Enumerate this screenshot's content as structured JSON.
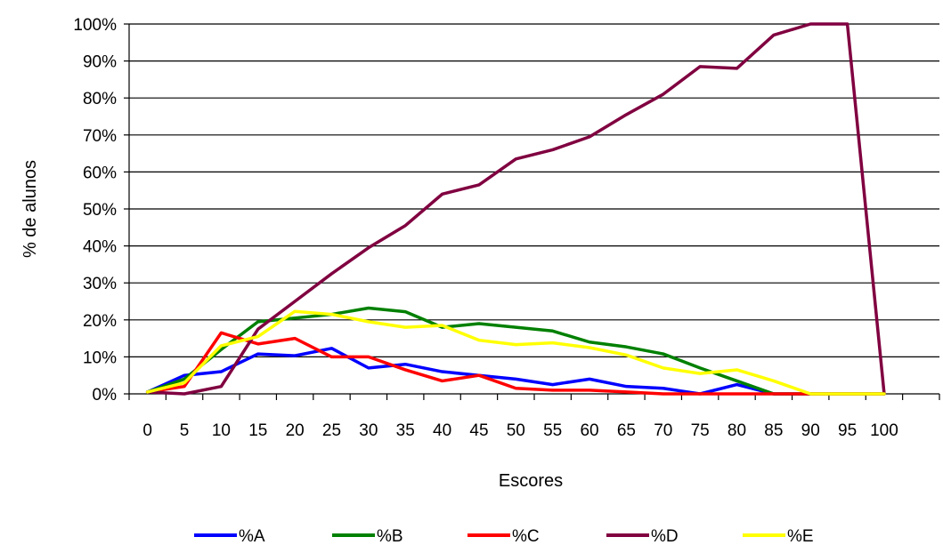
{
  "chart_data": {
    "type": "line",
    "title": "",
    "xlabel": "Escores",
    "ylabel": "% de alunos",
    "categories": [
      "0",
      "5",
      "10",
      "15",
      "20",
      "25",
      "30",
      "35",
      "40",
      "45",
      "50",
      "55",
      "60",
      "65",
      "70",
      "75",
      "80",
      "85",
      "90",
      "95",
      "100"
    ],
    "x": [
      0,
      5,
      10,
      15,
      20,
      25,
      30,
      35,
      40,
      45,
      50,
      55,
      60,
      65,
      70,
      75,
      80,
      85,
      90,
      95,
      100
    ],
    "ylim": [
      0,
      100
    ],
    "yticks": [
      "0%",
      "10%",
      "20%",
      "30%",
      "40%",
      "50%",
      "60%",
      "70%",
      "80%",
      "90%",
      "100%"
    ],
    "grid": true,
    "legend_position": "bottom",
    "series": [
      {
        "name": "%A",
        "color": "#0000ff",
        "values": [
          0.5,
          5,
          6,
          10.8,
          10.3,
          12.3,
          7,
          8,
          6,
          5,
          4,
          2.5,
          4,
          2,
          1.5,
          0,
          2.5,
          0,
          0,
          0,
          0
        ]
      },
      {
        "name": "%B",
        "color": "#008000",
        "values": [
          0.5,
          4,
          12,
          19.5,
          20.5,
          21.5,
          23.2,
          22.2,
          18,
          19,
          18,
          17,
          14,
          12.7,
          10.8,
          7,
          3.5,
          0,
          0,
          0,
          0
        ]
      },
      {
        "name": "%C",
        "color": "#ff0000",
        "values": [
          0.5,
          2,
          16.5,
          13.5,
          15,
          10,
          10,
          6.5,
          3.5,
          5,
          1.5,
          1,
          1,
          0.5,
          0,
          0,
          0,
          0,
          0,
          0,
          0
        ]
      },
      {
        "name": "%D",
        "color": "#800040",
        "values": [
          0.5,
          0,
          2,
          17.5,
          25,
          32.5,
          39.5,
          45.5,
          54,
          56.5,
          63.5,
          66,
          69.5,
          75.5,
          81,
          88.5,
          88,
          97,
          100,
          100,
          0
        ]
      },
      {
        "name": "%E",
        "color": "#ffff00",
        "values": [
          0.5,
          3,
          13,
          15.5,
          22.3,
          21.5,
          19.5,
          18,
          18.5,
          14.5,
          13.3,
          13.8,
          12.5,
          10.5,
          7,
          5.5,
          6.5,
          3.5,
          0,
          0,
          0
        ]
      }
    ]
  }
}
